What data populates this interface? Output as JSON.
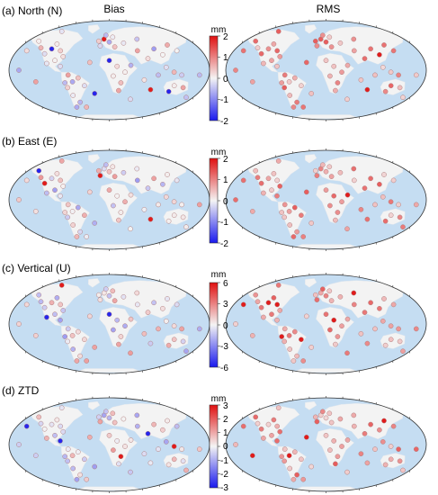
{
  "columns": {
    "left": "Bias",
    "right": "RMS"
  },
  "units": "mm",
  "colormap": {
    "low": "#1a1aee",
    "mid": "#f4f4f4",
    "high": "#e01010"
  },
  "ocean_color": "#c5ddf2",
  "land_color": "#f3f3f3",
  "panels": [
    {
      "label": "(a) North (N)",
      "ticks": [
        "2",
        "1",
        "0",
        "-1",
        "-2"
      ]
    },
    {
      "label": "(b) East (E)",
      "ticks": [
        "2",
        "1",
        "0",
        "-1",
        "-2"
      ]
    },
    {
      "label": "(c) Vertical (U)",
      "ticks": [
        "6",
        "3",
        "0",
        "-3",
        "-6"
      ]
    },
    {
      "label": "(d) ZTD",
      "ticks": [
        "3",
        "2",
        "1",
        "0",
        "-1",
        "-2",
        "-3"
      ]
    }
  ]
}
